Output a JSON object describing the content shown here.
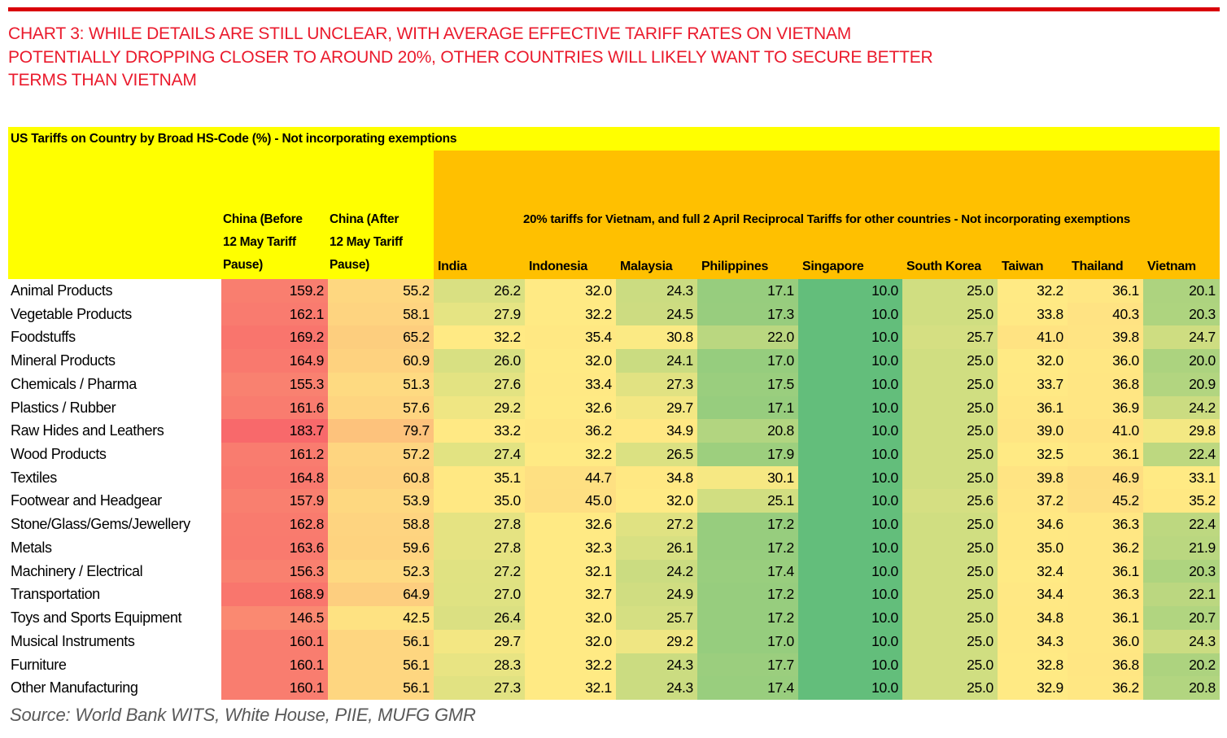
{
  "header": {
    "title_lines": [
      "CHART 3: WHILE DETAILS ARE STILL UNCLEAR, WITH AVERAGE EFFECTIVE TARIFF RATES ON VIETNAM",
      "POTENTIALLY DROPPING CLOSER TO AROUND 20%, OTHER COUNTRIES WILL LIKELY WANT TO SECURE BETTER",
      "TERMS THAN VIETNAM"
    ]
  },
  "source": {
    "text": "Source: World Bank WITS, White House, PIIE, MUFG GMR"
  },
  "colors": {
    "top_rule_red": "#D90008",
    "title_red": "#EA1A2C",
    "caption_yellow": "#FFFF00",
    "band_orange": "#FFC000",
    "scale_green": "#63BE7B",
    "scale_yellow": "#FFEB84",
    "scale_red": "#F8696B",
    "source_gray": "#595959"
  },
  "chart_data": {
    "type": "heatmap",
    "title": "US Tariffs on Country by Broad HS-Code (%) - Not incorporating exemptions",
    "band_note": "20% tariffs for Vietnam, and full 2 April Reciprocal Tariffs for other countries - Not incorporating exemptions",
    "columns": [
      "China (Before 12 May Tariff Pause)",
      "China (After 12 May Tariff Pause)",
      "India",
      "Indonesia",
      "Malaysia",
      "Philippines",
      "Singapore",
      "South Korea",
      "Taiwan",
      "Thailand",
      "Vietnam"
    ],
    "rows": [
      "Animal Products",
      "Vegetable Products",
      "Foodstuffs",
      "Mineral Products",
      "Chemicals / Pharma",
      "Plastics / Rubber",
      "Raw Hides and Leathers",
      "Wood Products",
      "Textiles",
      "Footwear and Headgear",
      "Stone/Glass/Gems/Jewellery",
      "Metals",
      "Machinery / Electrical",
      "Transportation",
      "Toys and Sports Equipment",
      "Musical Instruments",
      "Furniture",
      "Other Manufacturing"
    ],
    "values": [
      [
        159.2,
        55.2,
        26.2,
        32.0,
        24.3,
        17.1,
        10.0,
        25.0,
        32.2,
        36.1,
        20.1
      ],
      [
        162.1,
        58.1,
        27.9,
        32.2,
        24.5,
        17.3,
        10.0,
        25.0,
        33.8,
        40.3,
        20.3
      ],
      [
        169.2,
        65.2,
        32.2,
        35.4,
        30.8,
        22.0,
        10.0,
        25.7,
        41.0,
        39.8,
        24.7
      ],
      [
        164.9,
        60.9,
        26.0,
        32.0,
        24.1,
        17.0,
        10.0,
        25.0,
        32.0,
        36.0,
        20.0
      ],
      [
        155.3,
        51.3,
        27.6,
        33.4,
        27.3,
        17.5,
        10.0,
        25.0,
        33.7,
        36.8,
        20.9
      ],
      [
        161.6,
        57.6,
        29.2,
        32.6,
        29.7,
        17.1,
        10.0,
        25.0,
        36.1,
        36.9,
        24.2
      ],
      [
        183.7,
        79.7,
        33.2,
        36.2,
        34.9,
        20.8,
        10.0,
        25.0,
        39.0,
        41.0,
        29.8
      ],
      [
        161.2,
        57.2,
        27.4,
        32.2,
        26.5,
        17.9,
        10.0,
        25.0,
        32.5,
        36.1,
        22.4
      ],
      [
        164.8,
        60.8,
        35.1,
        44.7,
        34.8,
        30.1,
        10.0,
        25.0,
        39.8,
        46.9,
        33.1
      ],
      [
        157.9,
        53.9,
        35.0,
        45.0,
        32.0,
        25.1,
        10.0,
        25.6,
        37.2,
        45.2,
        35.2
      ],
      [
        162.8,
        58.8,
        27.8,
        32.6,
        27.2,
        17.2,
        10.0,
        25.0,
        34.6,
        36.3,
        22.4
      ],
      [
        163.6,
        59.6,
        27.8,
        32.3,
        26.1,
        17.2,
        10.0,
        25.0,
        35.0,
        36.2,
        21.9
      ],
      [
        156.3,
        52.3,
        27.2,
        32.1,
        24.2,
        17.4,
        10.0,
        25.0,
        32.4,
        36.1,
        20.3
      ],
      [
        168.9,
        64.9,
        27.0,
        32.7,
        24.9,
        17.2,
        10.0,
        25.0,
        34.4,
        36.3,
        22.1
      ],
      [
        146.5,
        42.5,
        26.4,
        32.0,
        25.7,
        17.2,
        10.0,
        25.0,
        34.8,
        36.1,
        20.7
      ],
      [
        160.1,
        56.1,
        29.7,
        32.0,
        29.2,
        17.0,
        10.0,
        25.0,
        34.3,
        36.0,
        24.3
      ],
      [
        160.1,
        56.1,
        28.3,
        32.2,
        24.3,
        17.7,
        10.0,
        25.0,
        32.8,
        36.8,
        20.2
      ],
      [
        160.1,
        56.1,
        27.3,
        32.1,
        24.3,
        17.4,
        10.0,
        25.0,
        32.9,
        36.2,
        20.8
      ]
    ],
    "color_scale": {
      "min_value": 10.0,
      "mid_value": 31.4,
      "max_value": 183.7,
      "min_color": "#63BE7B",
      "mid_color": "#FFEB84",
      "max_color": "#F8696B"
    },
    "value_format": "one_decimal",
    "legend_position": "none",
    "grid": false
  }
}
